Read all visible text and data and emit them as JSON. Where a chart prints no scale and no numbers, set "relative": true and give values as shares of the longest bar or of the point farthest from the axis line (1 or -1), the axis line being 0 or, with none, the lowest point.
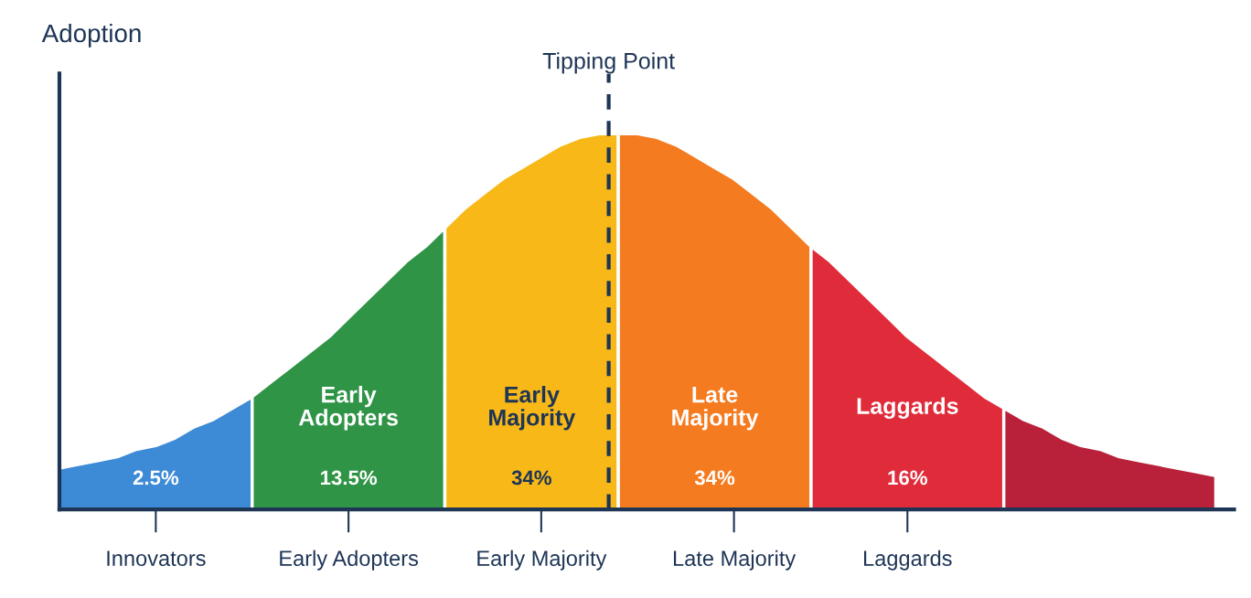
{
  "chart_data": {
    "type": "area",
    "relative": true,
    "ylabel": "Adoption",
    "categories": [
      null,
      null,
      null,
      null,
      null,
      "Innovators",
      null,
      null,
      null,
      null,
      null,
      null,
      null,
      null,
      null,
      "Early Adopters",
      null,
      null,
      null,
      null,
      null,
      null,
      null,
      null,
      null,
      "Early Majority",
      null,
      null,
      null,
      null,
      null,
      null,
      null,
      null,
      null,
      "Late Majority",
      null,
      null,
      null,
      null,
      null,
      null,
      null,
      null,
      "Laggards",
      null,
      null,
      null,
      null,
      null,
      null,
      null,
      null,
      null,
      null,
      null,
      null,
      null,
      null,
      null,
      null
    ],
    "series": [
      {
        "color": "#3d8bd6",
        "values": [
          0.11,
          0.12,
          0.13,
          0.14,
          0.16,
          0.17,
          0.19,
          0.22,
          0.24,
          0.27,
          0.3,
          null,
          null,
          null,
          null,
          null,
          null,
          null,
          null,
          null,
          null,
          null,
          null,
          null,
          null,
          null,
          null,
          null,
          null,
          null,
          null,
          null,
          null,
          null,
          null,
          null,
          null,
          null,
          null,
          null,
          null,
          null,
          null,
          null,
          null,
          null,
          null,
          null,
          null,
          null,
          null,
          null,
          null,
          null,
          null,
          null,
          null,
          null,
          null,
          null,
          null
        ]
      },
      {
        "name": "Early\nAdopters",
        "color": "#2f9446",
        "values": [
          null,
          null,
          null,
          null,
          null,
          null,
          null,
          null,
          null,
          null,
          0.3,
          0.34,
          0.38,
          0.42,
          0.46,
          0.51,
          0.56,
          0.61,
          0.66,
          0.7,
          0.75,
          null,
          null,
          null,
          null,
          null,
          null,
          null,
          null,
          null,
          null,
          null,
          null,
          null,
          null,
          null,
          null,
          null,
          null,
          null,
          null,
          null,
          null,
          null,
          null,
          null,
          null,
          null,
          null,
          null,
          null,
          null,
          null,
          null,
          null,
          null,
          null,
          null,
          null,
          null,
          null
        ]
      },
      {
        "name": "Early\nMajority",
        "color": "#f7b818",
        "values": [
          null,
          null,
          null,
          null,
          null,
          null,
          null,
          null,
          null,
          null,
          null,
          null,
          null,
          null,
          null,
          null,
          null,
          null,
          null,
          null,
          0.75,
          0.8,
          0.84,
          0.88,
          0.91,
          0.94,
          0.97,
          0.99,
          1.0,
          1.0,
          null,
          null,
          null,
          null,
          null,
          null,
          null,
          null,
          null,
          null,
          null,
          null,
          null,
          null,
          null,
          null,
          null,
          null,
          null,
          null,
          null,
          null,
          null,
          null,
          null,
          null,
          null,
          null,
          null,
          null,
          null
        ]
      },
      {
        "name": "Late\nMajority",
        "color": "#f57b20",
        "values": [
          null,
          null,
          null,
          null,
          null,
          null,
          null,
          null,
          null,
          null,
          null,
          null,
          null,
          null,
          null,
          null,
          null,
          null,
          null,
          null,
          null,
          null,
          null,
          null,
          null,
          null,
          null,
          null,
          null,
          1.0,
          1.0,
          0.99,
          0.97,
          0.94,
          0.91,
          0.88,
          0.84,
          0.8,
          0.75,
          0.7,
          null,
          null,
          null,
          null,
          null,
          null,
          null,
          null,
          null,
          null,
          null,
          null,
          null,
          null,
          null,
          null,
          null,
          null,
          null,
          null,
          null
        ]
      },
      {
        "name": "Laggards",
        "color": "#e02b3a",
        "values": [
          null,
          null,
          null,
          null,
          null,
          null,
          null,
          null,
          null,
          null,
          null,
          null,
          null,
          null,
          null,
          null,
          null,
          null,
          null,
          null,
          null,
          null,
          null,
          null,
          null,
          null,
          null,
          null,
          null,
          null,
          null,
          null,
          null,
          null,
          null,
          null,
          null,
          null,
          null,
          0.7,
          0.66,
          0.61,
          0.56,
          0.51,
          0.46,
          0.42,
          0.38,
          0.34,
          0.3,
          0.27,
          null,
          null,
          null,
          null,
          null,
          null,
          null,
          null,
          null,
          null,
          null
        ]
      },
      {
        "color": "#b9213a",
        "values": [
          null,
          null,
          null,
          null,
          null,
          null,
          null,
          null,
          null,
          null,
          null,
          null,
          null,
          null,
          null,
          null,
          null,
          null,
          null,
          null,
          null,
          null,
          null,
          null,
          null,
          null,
          null,
          null,
          null,
          null,
          null,
          null,
          null,
          null,
          null,
          null,
          null,
          null,
          null,
          null,
          null,
          null,
          null,
          null,
          null,
          null,
          null,
          null,
          null,
          0.27,
          0.24,
          0.22,
          0.19,
          0.17,
          0.16,
          0.14,
          0.13,
          0.12,
          0.11,
          0.1,
          0.09
        ]
      }
    ],
    "annotations": [
      "2.5%",
      "13.5%",
      "34%",
      "34%",
      "16%",
      "Tipping Point"
    ]
  }
}
